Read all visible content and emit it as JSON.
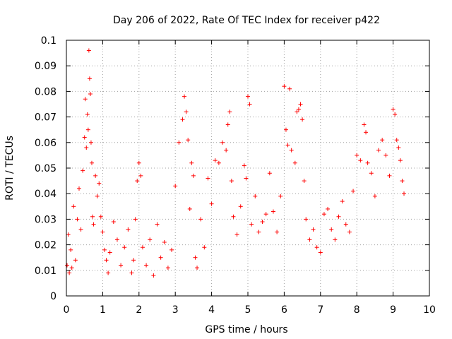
{
  "chart_data": {
    "type": "scatter",
    "title": "Day 206 of 2022, Rate Of TEC Index for receiver p422",
    "xlabel": "GPS time / hours",
    "ylabel": "ROTI / TECUs",
    "xlim": [
      0,
      10
    ],
    "ylim": [
      0,
      0.1
    ],
    "x_ticks": [
      "0",
      "1",
      "2",
      "3",
      "4",
      "5",
      "6",
      "7",
      "8",
      "9",
      "10"
    ],
    "y_ticks": [
      "0",
      "0.01",
      "0.02",
      "0.03",
      "0.04",
      "0.05",
      "0.06",
      "0.07",
      "0.08",
      "0.09",
      "0.1"
    ],
    "grid": true,
    "marker": "+",
    "color": "#ff0000",
    "series": [
      {
        "name": "ROTI",
        "x": [
          0.02,
          0.05,
          0.08,
          0.12,
          0.15,
          0.2,
          0.25,
          0.3,
          0.35,
          0.4,
          0.45,
          0.5,
          0.52,
          0.55,
          0.58,
          0.6,
          0.62,
          0.64,
          0.66,
          0.68,
          0.7,
          0.72,
          0.75,
          0.8,
          0.85,
          0.9,
          0.95,
          1.0,
          1.05,
          1.1,
          1.15,
          1.2,
          1.3,
          1.4,
          1.5,
          1.6,
          1.7,
          1.8,
          1.85,
          1.9,
          1.95,
          2.0,
          2.05,
          2.1,
          2.2,
          2.3,
          2.4,
          2.5,
          2.6,
          2.7,
          2.8,
          2.9,
          3.0,
          3.1,
          3.2,
          3.25,
          3.3,
          3.35,
          3.4,
          3.45,
          3.5,
          3.55,
          3.6,
          3.7,
          3.8,
          3.9,
          4.0,
          4.1,
          4.2,
          4.3,
          4.4,
          4.45,
          4.5,
          4.55,
          4.6,
          4.7,
          4.8,
          4.9,
          4.95,
          5.0,
          5.05,
          5.1,
          5.2,
          5.3,
          5.4,
          5.5,
          5.6,
          5.7,
          5.8,
          5.9,
          6.0,
          6.05,
          6.1,
          6.15,
          6.2,
          6.3,
          6.35,
          6.4,
          6.45,
          6.5,
          6.55,
          6.6,
          6.7,
          6.8,
          6.9,
          7.0,
          7.1,
          7.2,
          7.3,
          7.4,
          7.5,
          7.6,
          7.7,
          7.8,
          7.9,
          8.0,
          8.1,
          8.2,
          8.25,
          8.3,
          8.4,
          8.5,
          8.6,
          8.7,
          8.8,
          8.9,
          9.0,
          9.05,
          9.1,
          9.15,
          9.2,
          9.25,
          9.3
        ],
        "y": [
          0.012,
          0.024,
          0.009,
          0.018,
          0.011,
          0.035,
          0.014,
          0.03,
          0.042,
          0.026,
          0.049,
          0.062,
          0.077,
          0.058,
          0.071,
          0.065,
          0.096,
          0.085,
          0.079,
          0.06,
          0.052,
          0.031,
          0.028,
          0.047,
          0.039,
          0.044,
          0.031,
          0.025,
          0.018,
          0.014,
          0.009,
          0.017,
          0.029,
          0.022,
          0.012,
          0.019,
          0.026,
          0.009,
          0.014,
          0.03,
          0.045,
          0.052,
          0.047,
          0.019,
          0.012,
          0.022,
          0.008,
          0.028,
          0.015,
          0.021,
          0.011,
          0.018,
          0.043,
          0.06,
          0.069,
          0.078,
          0.072,
          0.061,
          0.034,
          0.052,
          0.047,
          0.015,
          0.011,
          0.03,
          0.019,
          0.046,
          0.036,
          0.053,
          0.052,
          0.06,
          0.057,
          0.067,
          0.072,
          0.045,
          0.031,
          0.024,
          0.035,
          0.051,
          0.046,
          0.078,
          0.075,
          0.028,
          0.039,
          0.025,
          0.029,
          0.032,
          0.048,
          0.033,
          0.025,
          0.039,
          0.082,
          0.065,
          0.059,
          0.081,
          0.057,
          0.052,
          0.072,
          0.073,
          0.075,
          0.069,
          0.045,
          0.03,
          0.022,
          0.026,
          0.019,
          0.017,
          0.032,
          0.034,
          0.026,
          0.022,
          0.031,
          0.037,
          0.028,
          0.025,
          0.041,
          0.055,
          0.053,
          0.067,
          0.064,
          0.052,
          0.048,
          0.039,
          0.057,
          0.061,
          0.055,
          0.047,
          0.073,
          0.071,
          0.061,
          0.058,
          0.053,
          0.045,
          0.04
        ]
      }
    ]
  }
}
